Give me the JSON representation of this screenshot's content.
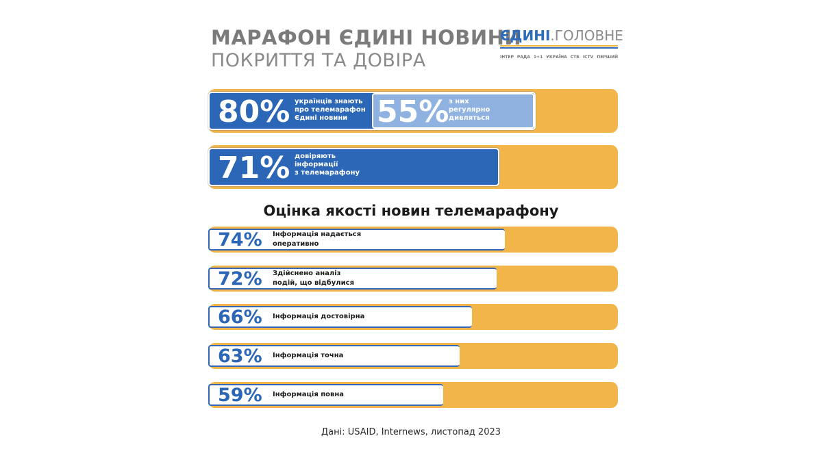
{
  "header": {
    "title": "МАРАФОН ЄДИНІ НОВИНИ",
    "subtitle": "ПОКРИТТЯ ТА ДОВІРА",
    "logo_bold": "ЄДИНІ",
    "logo_light": ".ГОЛОВНЕ",
    "channels": [
      "ІНТЕР",
      "РАДА",
      "1+1",
      "УКРАЇНА",
      "СТБ",
      "ICTV",
      "ПЕРШИЙ"
    ]
  },
  "top_stats": {
    "awareness": {
      "pct": "80%",
      "text": [
        "українців знають",
        "про телемарафон",
        "Єдині новини"
      ]
    },
    "watch": {
      "pct": "55%",
      "text": [
        "з них",
        "регулярно",
        "дивляться"
      ]
    },
    "trust": {
      "pct": "71%",
      "text": [
        "довіряють",
        "інформації",
        "з телемарафону"
      ]
    }
  },
  "section_title": "Оцінка якості новин телемарафону",
  "quality_items": [
    {
      "pct": "74%",
      "lines": [
        "Інформація надається",
        "оперативно"
      ]
    },
    {
      "pct": "72%",
      "lines": [
        "Здійснено аналіз",
        "подій, що відбулися"
      ]
    },
    {
      "pct": "66%",
      "lines": [
        "Інформація достовірна"
      ]
    },
    {
      "pct": "63%",
      "lines": [
        "Інформація точна"
      ]
    },
    {
      "pct": "59%",
      "lines": [
        "Інформація повна"
      ]
    }
  ],
  "source": "Дані: USAID, Internews, листопад 2023",
  "chart_data": {
    "type": "bar",
    "orientation": "horizontal",
    "title": "Оцінка якості новин телемарафону",
    "categories": [
      "українців знають про телемарафон Єдині новини",
      "з них регулярно дивляться",
      "довіряють інформації з телемарафону",
      "Інформація надається оперативно",
      "Здійснено аналіз подій, що відбулися",
      "Інформація достовірна",
      "Інформація точна",
      "Інформація повна"
    ],
    "values": [
      80,
      55,
      71,
      74,
      72,
      66,
      63,
      59
    ],
    "xlim": [
      0,
      100
    ],
    "unit": "%",
    "grid": false,
    "legend": "none",
    "colors": {
      "track": "#f2b54a",
      "primary": "#2c66b6",
      "secondary": "#8fb2e0",
      "bar_white": "#ffffff"
    }
  }
}
